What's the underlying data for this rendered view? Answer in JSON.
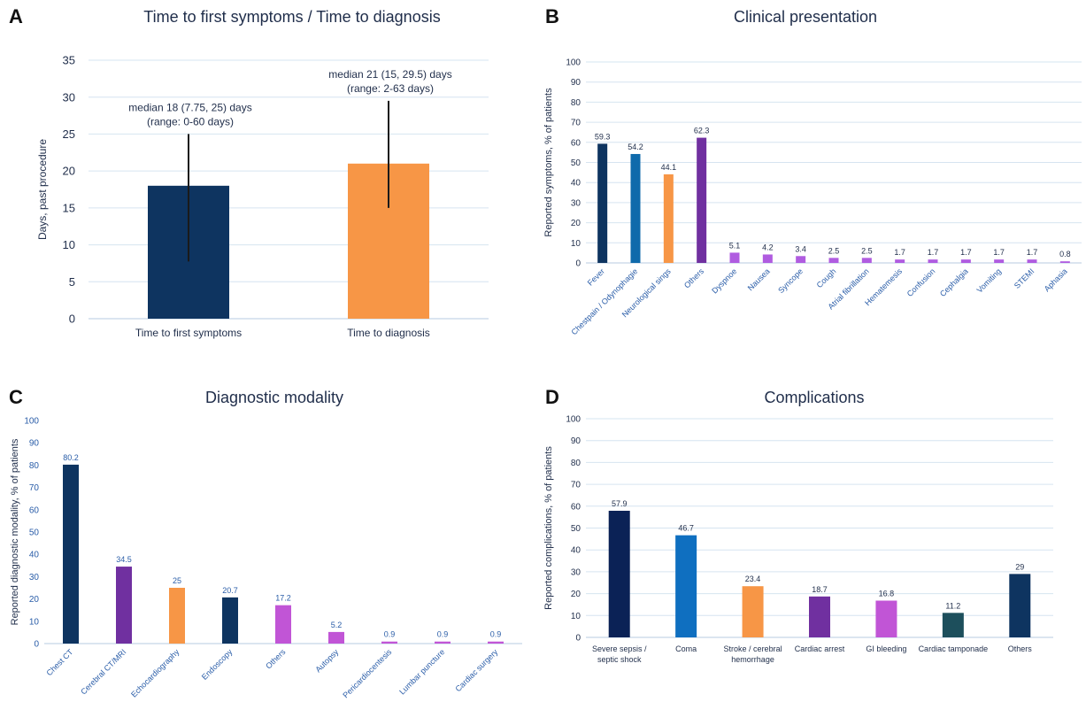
{
  "chart_data": [
    {
      "panel": "A",
      "type": "bar",
      "title": "Time to first symptoms / Time to diagnosis",
      "ylabel": "Days, past procedure",
      "xlabel": "",
      "ylim": [
        0,
        35
      ],
      "yticks": [
        "0",
        "5",
        "10",
        "15",
        "20",
        "25",
        "30",
        "35"
      ],
      "grid": true,
      "categories": [
        "Time to first symptoms",
        "Time to diagnosis"
      ],
      "values": [
        18,
        21
      ],
      "error_upper": [
        25,
        29.5
      ],
      "error_lower": [
        7.75,
        15
      ],
      "annotations": [
        [
          "median 18 (7.75, 25) days",
          "(range: 0-60 days)"
        ],
        [
          "median 21 (15, 29.5) days",
          "(range: 2-63 days)"
        ]
      ],
      "colors": [
        "#0e3460",
        "#f79646"
      ]
    },
    {
      "panel": "B",
      "type": "bar",
      "title": "Clinical presentation",
      "ylabel": "Reported symptoms, % of patients",
      "xlabel": "",
      "ylim": [
        0,
        100
      ],
      "yticks": [
        "0",
        "10",
        "20",
        "30",
        "40",
        "50",
        "60",
        "70",
        "80",
        "90",
        "100"
      ],
      "grid": true,
      "categories": [
        "Fever",
        "Chestpain / Odynophagie",
        "Neurological sings",
        "Others",
        "Dyspnoe",
        "Nausea",
        "Syncope",
        "Cough",
        "Atrial fibrillation",
        "Hematemesis",
        "Confusion",
        "Cephalgia",
        "Vomiting",
        "STEMI",
        "Aphasia"
      ],
      "values": [
        59.3,
        54.2,
        44.1,
        62.3,
        5.1,
        4.2,
        3.4,
        2.5,
        2.5,
        1.7,
        1.7,
        1.7,
        1.7,
        1.7,
        0.8
      ],
      "value_labels": [
        "59.3",
        "54.2",
        "44.1",
        "62.3",
        "5.1",
        "4.2",
        "3.4",
        "2.5",
        "2.5",
        "1.7",
        "1.7",
        "1.7",
        "1.7",
        "1.7",
        "0.8"
      ],
      "colors": [
        "#0e3460",
        "#0f6aab",
        "#f79646",
        "#7030a0",
        "#b05ce0",
        "#b05ce0",
        "#b05ce0",
        "#b05ce0",
        "#b05ce0",
        "#b05ce0",
        "#b05ce0",
        "#b05ce0",
        "#b05ce0",
        "#b05ce0",
        "#b05ce0"
      ]
    },
    {
      "panel": "C",
      "type": "bar",
      "title": "Diagnostic modality",
      "ylabel": "Reported diagnostic modality, % of patients",
      "xlabel": "",
      "ylim": [
        0,
        100
      ],
      "yticks": [
        "0",
        "10",
        "20",
        "30",
        "40",
        "50",
        "60",
        "70",
        "80",
        "90",
        "100"
      ],
      "grid": false,
      "categories": [
        "Chest CT",
        "Cerebral CT/MRI",
        "Echocardiography",
        "Endoscopy",
        "Others",
        "Autopsy",
        "Pericardiocentesis",
        "Lumbar puncture",
        "Cardiac surgery"
      ],
      "values": [
        80.2,
        34.5,
        25,
        20.7,
        17.2,
        5.2,
        0.9,
        0.9,
        0.9
      ],
      "value_labels": [
        "80.2",
        "34.5",
        "25",
        "20.7",
        "17.2",
        "5.2",
        "0.9",
        "0.9",
        "0.9"
      ],
      "colors": [
        "#0e3460",
        "#7030a0",
        "#f79646",
        "#0e3460",
        "#c155d6",
        "#c155d6",
        "#c155d6",
        "#c155d6",
        "#c155d6"
      ]
    },
    {
      "panel": "D",
      "type": "bar",
      "title": "Complications",
      "ylabel": "Reported complications, % of patients",
      "xlabel": "",
      "ylim": [
        0,
        100
      ],
      "yticks": [
        "0",
        "10",
        "20",
        "30",
        "40",
        "50",
        "60",
        "70",
        "80",
        "90",
        "100"
      ],
      "grid": true,
      "categories": [
        [
          "Severe sepsis /",
          "septic shock"
        ],
        [
          "Coma"
        ],
        [
          "Stroke / cerebral",
          "hemorrhage"
        ],
        [
          "Cardiac arrest"
        ],
        [
          "GI bleeding"
        ],
        [
          "Cardiac tamponade"
        ],
        [
          "Others"
        ]
      ],
      "values": [
        57.9,
        46.7,
        23.4,
        18.7,
        16.8,
        11.2,
        29
      ],
      "value_labels": [
        "57.9",
        "46.7",
        "23.4",
        "18.7",
        "16.8",
        "11.2",
        "29"
      ],
      "colors": [
        "#0b2256",
        "#0f6fc0",
        "#f79646",
        "#7030a0",
        "#c155d6",
        "#1d4f5c",
        "#0e3460"
      ]
    }
  ]
}
